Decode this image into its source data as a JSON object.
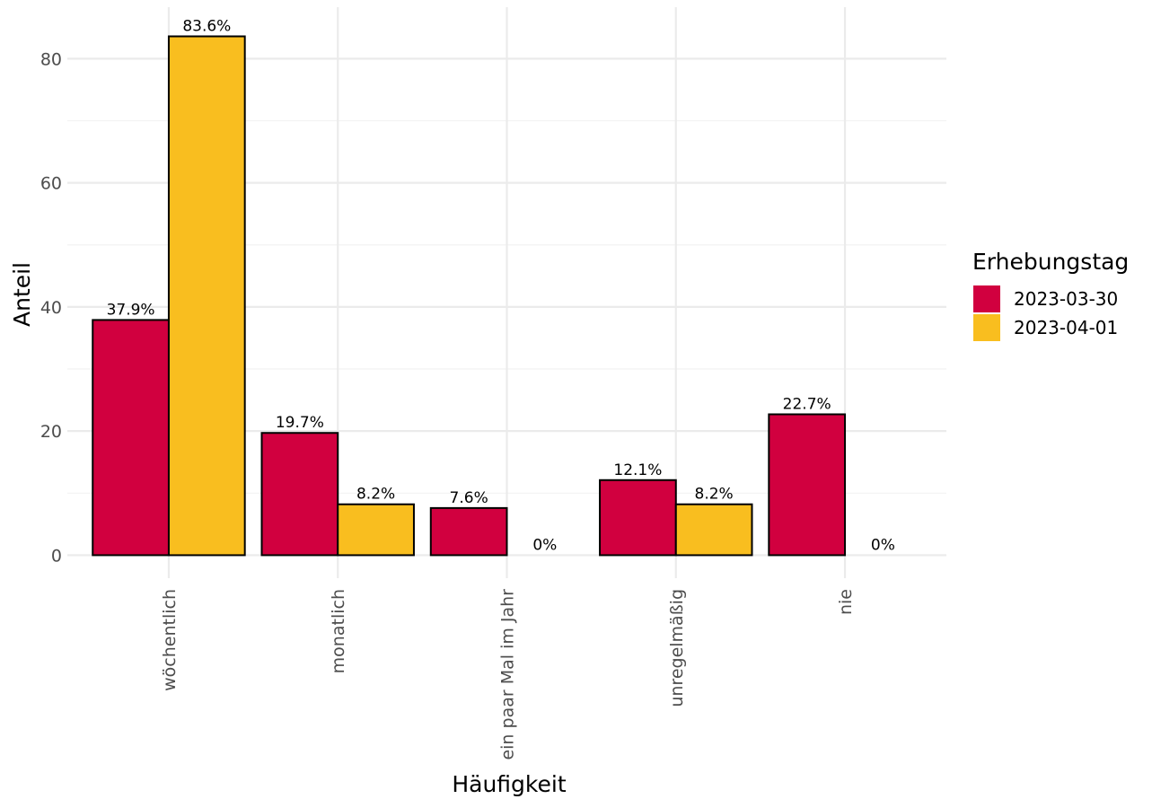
{
  "chart_data": {
    "type": "bar",
    "title": "",
    "xlabel": "Häufigkeit",
    "ylabel": "Anteil",
    "ylim": [
      -3.7,
      88.3
    ],
    "yticks": [
      0,
      20,
      40,
      60,
      80
    ],
    "grid": true,
    "legend_position": "right",
    "legend_title": "Erhebungstag",
    "categories": [
      "wöchentlich",
      "monatlich",
      "ein paar Mal im Jahr",
      "unregelmäßig",
      "nie"
    ],
    "series": [
      {
        "name": "2023-03-30",
        "color": "#D1003F",
        "values": [
          37.9,
          19.7,
          7.6,
          12.1,
          22.7
        ],
        "labels": [
          "37.9%",
          "19.7%",
          "7.6%",
          "12.1%",
          "22.7%"
        ]
      },
      {
        "name": "2023-04-01",
        "color": "#F9BE1F",
        "values": [
          83.6,
          8.2,
          0,
          8.2,
          0
        ],
        "labels": [
          "83.6%",
          "8.2%",
          "0%",
          "8.2%",
          "0%"
        ]
      }
    ]
  }
}
